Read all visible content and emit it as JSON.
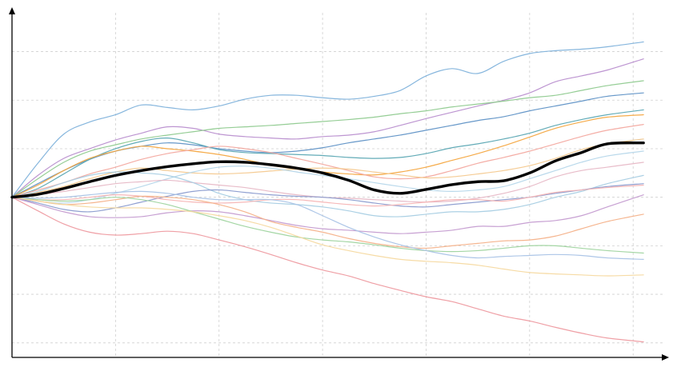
{
  "chart_data": {
    "type": "line",
    "title": "",
    "xlabel": "",
    "ylabel": "",
    "grid": true,
    "legend": "none",
    "x_ticks": [
      1,
      2,
      3,
      4,
      5,
      6
    ],
    "y_ticks": [
      -3,
      -2,
      -1,
      0,
      1,
      2,
      3
    ],
    "xlim": [
      0,
      6.3
    ],
    "ylim": [
      -3.3,
      3.8
    ],
    "x": [
      0,
      0.25,
      0.5,
      0.75,
      1,
      1.25,
      1.5,
      1.75,
      2,
      2.25,
      2.5,
      2.75,
      3,
      3.25,
      3.5,
      3.75,
      4,
      4.25,
      4.5,
      4.75,
      5,
      5.25,
      5.5,
      5.75,
      6.1
    ],
    "mean_series": {
      "values": [
        0,
        0.06,
        0.18,
        0.32,
        0.45,
        0.55,
        0.63,
        0.69,
        0.73,
        0.72,
        0.67,
        0.6,
        0.5,
        0.35,
        0.15,
        0.08,
        0.16,
        0.26,
        0.32,
        0.34,
        0.5,
        0.75,
        0.92,
        1.1,
        1.12
      ],
      "color": "#000000"
    },
    "series": [
      {
        "color": "#7fb2db",
        "values": [
          0,
          0.7,
          1.3,
          1.55,
          1.7,
          1.9,
          1.85,
          1.8,
          1.88,
          2.02,
          2.1,
          2.1,
          2.05,
          2.02,
          2.08,
          2.2,
          2.5,
          2.65,
          2.55,
          2.8,
          2.96,
          3.02,
          3.05,
          3.1,
          3.2
        ]
      },
      {
        "color": "#b98fcf",
        "values": [
          0,
          0.45,
          0.8,
          1.0,
          1.18,
          1.32,
          1.45,
          1.42,
          1.3,
          1.25,
          1.22,
          1.2,
          1.25,
          1.28,
          1.35,
          1.48,
          1.62,
          1.75,
          1.88,
          2.0,
          2.15,
          2.38,
          2.5,
          2.62,
          2.85
        ]
      },
      {
        "color": "#8fca8f",
        "values": [
          0,
          0.38,
          0.72,
          0.95,
          1.08,
          1.2,
          1.28,
          1.35,
          1.42,
          1.45,
          1.48,
          1.52,
          1.56,
          1.6,
          1.65,
          1.72,
          1.78,
          1.86,
          1.92,
          1.98,
          2.05,
          2.1,
          2.2,
          2.3,
          2.4
        ]
      },
      {
        "color": "#5f92c6",
        "values": [
          0,
          0.28,
          0.55,
          0.78,
          0.95,
          1.05,
          1.12,
          1.08,
          1.0,
          0.95,
          0.92,
          0.95,
          1.02,
          1.12,
          1.2,
          1.28,
          1.38,
          1.48,
          1.58,
          1.66,
          1.78,
          1.88,
          1.98,
          2.08,
          2.15
        ]
      },
      {
        "color": "#5aa6b3",
        "values": [
          0,
          0.18,
          0.48,
          0.78,
          1.0,
          1.15,
          1.22,
          1.12,
          0.98,
          0.92,
          0.9,
          0.88,
          0.86,
          0.82,
          0.8,
          0.82,
          0.9,
          1.02,
          1.1,
          1.2,
          1.32,
          1.48,
          1.6,
          1.7,
          1.8
        ]
      },
      {
        "color": "#f4a640",
        "values": [
          0,
          0.25,
          0.55,
          0.8,
          0.95,
          1.05,
          1.0,
          0.95,
          0.88,
          0.78,
          0.66,
          0.58,
          0.52,
          0.48,
          0.46,
          0.52,
          0.62,
          0.76,
          0.9,
          1.06,
          1.24,
          1.42,
          1.55,
          1.65,
          1.7
        ]
      },
      {
        "color": "#f3a9a0",
        "values": [
          0,
          0.15,
          0.3,
          0.48,
          0.62,
          0.78,
          0.9,
          0.98,
          1.05,
          1.0,
          0.92,
          0.8,
          0.68,
          0.55,
          0.42,
          0.38,
          0.42,
          0.55,
          0.7,
          0.82,
          0.95,
          1.1,
          1.25,
          1.38,
          1.5
        ]
      },
      {
        "color": "#f4c98f",
        "values": [
          0,
          0.1,
          0.22,
          0.38,
          0.52,
          0.6,
          0.55,
          0.5,
          0.48,
          0.5,
          0.54,
          0.58,
          0.6,
          0.58,
          0.52,
          0.46,
          0.4,
          0.42,
          0.48,
          0.55,
          0.65,
          0.8,
          0.98,
          1.1,
          1.2
        ]
      },
      {
        "color": "#b6d7ea",
        "values": [
          0,
          -0.08,
          -0.12,
          -0.05,
          0.08,
          0.22,
          0.38,
          0.52,
          0.62,
          0.64,
          0.6,
          0.52,
          0.45,
          0.38,
          0.3,
          0.22,
          0.15,
          0.12,
          0.15,
          0.22,
          0.38,
          0.55,
          0.72,
          0.85,
          0.95
        ]
      },
      {
        "color": "#e7b8c6",
        "values": [
          0,
          0.05,
          0.12,
          0.2,
          0.28,
          0.32,
          0.35,
          0.3,
          0.25,
          0.2,
          0.12,
          0.05,
          0.0,
          -0.02,
          -0.05,
          -0.08,
          -0.1,
          -0.08,
          -0.02,
          0.08,
          0.22,
          0.42,
          0.55,
          0.62,
          0.72
        ]
      },
      {
        "color": "#a7cde3",
        "values": [
          0,
          0.12,
          0.3,
          0.45,
          0.52,
          0.5,
          0.45,
          0.3,
          0.08,
          -0.05,
          -0.12,
          -0.15,
          -0.2,
          -0.28,
          -0.38,
          -0.4,
          -0.35,
          -0.3,
          -0.3,
          -0.25,
          -0.15,
          0.0,
          0.12,
          0.28,
          0.45
        ]
      },
      {
        "color": "#8a9bcf",
        "values": [
          0,
          -0.12,
          -0.25,
          -0.3,
          -0.22,
          -0.1,
          0.02,
          0.12,
          0.15,
          0.1,
          0.05,
          0.02,
          0.0,
          -0.05,
          -0.12,
          -0.18,
          -0.2,
          -0.15,
          -0.1,
          -0.05,
          0.0,
          0.08,
          0.15,
          0.22,
          0.28
        ]
      },
      {
        "color": "#f5b4b4",
        "values": [
          0,
          -0.05,
          -0.05,
          0.0,
          0.05,
          0.02,
          -0.05,
          -0.1,
          -0.12,
          -0.1,
          -0.05,
          -0.05,
          -0.1,
          -0.15,
          -0.18,
          -0.15,
          -0.1,
          -0.05,
          -0.05,
          -0.08,
          0.0,
          0.1,
          0.15,
          0.2,
          0.25
        ]
      },
      {
        "color": "#c49bd0",
        "values": [
          0,
          -0.15,
          -0.3,
          -0.4,
          -0.42,
          -0.4,
          -0.32,
          -0.28,
          -0.3,
          -0.38,
          -0.48,
          -0.58,
          -0.65,
          -0.68,
          -0.72,
          -0.75,
          -0.72,
          -0.68,
          -0.6,
          -0.6,
          -0.52,
          -0.48,
          -0.38,
          -0.2,
          0.05
        ]
      },
      {
        "color": "#f4b189",
        "values": [
          0,
          -0.08,
          -0.15,
          -0.12,
          -0.05,
          0.02,
          0.0,
          -0.05,
          -0.15,
          -0.3,
          -0.5,
          -0.62,
          -0.72,
          -0.85,
          -0.95,
          -1.02,
          -1.05,
          -1.0,
          -0.95,
          -0.9,
          -0.88,
          -0.8,
          -0.65,
          -0.5,
          -0.35
        ]
      },
      {
        "color": "#9fd49f",
        "values": [
          0,
          -0.05,
          -0.08,
          -0.05,
          0.0,
          -0.05,
          -0.15,
          -0.3,
          -0.45,
          -0.6,
          -0.72,
          -0.82,
          -0.88,
          -0.92,
          -0.98,
          -1.05,
          -1.1,
          -1.12,
          -1.1,
          -1.05,
          -1.0,
          -1.0,
          -1.05,
          -1.1,
          -1.15
        ]
      },
      {
        "color": "#a9c3e6",
        "values": [
          0,
          -0.02,
          0.0,
          0.05,
          0.1,
          0.12,
          0.08,
          0.0,
          -0.05,
          -0.05,
          -0.05,
          -0.15,
          -0.38,
          -0.62,
          -0.82,
          -0.98,
          -1.1,
          -1.2,
          -1.25,
          -1.22,
          -1.2,
          -1.18,
          -1.2,
          -1.25,
          -1.28
        ]
      },
      {
        "color": "#f5d9a0",
        "values": [
          0,
          -0.08,
          -0.15,
          -0.2,
          -0.22,
          -0.22,
          -0.25,
          -0.3,
          -0.38,
          -0.48,
          -0.62,
          -0.8,
          -0.98,
          -1.1,
          -1.2,
          -1.28,
          -1.32,
          -1.35,
          -1.4,
          -1.48,
          -1.55,
          -1.58,
          -1.6,
          -1.62,
          -1.6
        ]
      },
      {
        "color": "#ee9aa0",
        "values": [
          0,
          -0.28,
          -0.55,
          -0.72,
          -0.78,
          -0.75,
          -0.7,
          -0.75,
          -0.88,
          -1.02,
          -1.18,
          -1.35,
          -1.5,
          -1.62,
          -1.78,
          -1.92,
          -2.05,
          -2.15,
          -2.3,
          -2.45,
          -2.55,
          -2.68,
          -2.8,
          -2.9,
          -2.98
        ]
      }
    ]
  }
}
